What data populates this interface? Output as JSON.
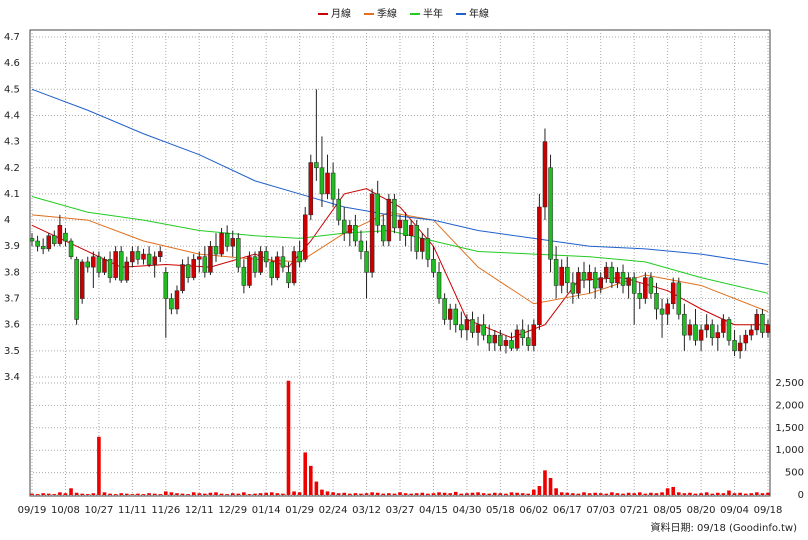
{
  "chart_data": {
    "type": "candlestick",
    "series": [
      {
        "name": "月線",
        "color": "#cc0000",
        "x": [
          0,
          8,
          16,
          24,
          32,
          40,
          46,
          50,
          56,
          60,
          66,
          72,
          78,
          86,
          92,
          98,
          106,
          114,
          120,
          126,
          132
        ],
        "values": [
          3.98,
          3.9,
          3.82,
          3.83,
          3.82,
          3.87,
          3.82,
          3.92,
          4.1,
          4.12,
          4.05,
          3.9,
          3.62,
          3.55,
          3.6,
          3.77,
          3.78,
          3.73,
          3.66,
          3.6,
          3.6
        ]
      },
      {
        "name": "季線",
        "color": "#e07020",
        "x": [
          0,
          10,
          20,
          30,
          40,
          48,
          56,
          64,
          72,
          80,
          90,
          100,
          110,
          120,
          132
        ],
        "values": [
          4.02,
          4.0,
          3.92,
          3.87,
          3.85,
          3.84,
          3.95,
          4.03,
          4.0,
          3.82,
          3.68,
          3.72,
          3.79,
          3.75,
          3.65
        ]
      },
      {
        "name": "半年",
        "color": "#22cc22",
        "x": [
          0,
          10,
          20,
          30,
          40,
          48,
          56,
          64,
          72,
          80,
          90,
          100,
          110,
          120,
          132
        ],
        "values": [
          4.09,
          4.03,
          4.0,
          3.96,
          3.94,
          3.93,
          3.95,
          3.96,
          3.92,
          3.88,
          3.87,
          3.86,
          3.84,
          3.78,
          3.72
        ]
      },
      {
        "name": "年線",
        "color": "#2060cc",
        "x": [
          0,
          10,
          20,
          30,
          40,
          48,
          56,
          64,
          72,
          80,
          90,
          100,
          110,
          120,
          132
        ],
        "values": [
          4.5,
          4.42,
          4.33,
          4.25,
          4.15,
          4.1,
          4.05,
          4.02,
          4.0,
          3.96,
          3.93,
          3.9,
          3.89,
          3.87,
          3.83
        ]
      }
    ],
    "up_color": "#cc0000",
    "down_color": "#22bb22",
    "volume_color": "#ee0000",
    "candles": [
      [
        3.93,
        3.95,
        3.9,
        3.92
      ],
      [
        3.92,
        3.94,
        3.88,
        3.9
      ],
      [
        3.9,
        3.93,
        3.87,
        3.89
      ],
      [
        3.89,
        3.95,
        3.88,
        3.94
      ],
      [
        3.94,
        3.96,
        3.9,
        3.91
      ],
      [
        3.91,
        4.02,
        3.9,
        3.98
      ],
      [
        3.95,
        3.97,
        3.9,
        3.92
      ],
      [
        3.92,
        3.93,
        3.85,
        3.86
      ],
      [
        3.85,
        3.86,
        3.6,
        3.62
      ],
      [
        3.7,
        3.85,
        3.68,
        3.84
      ],
      [
        3.84,
        3.86,
        3.8,
        3.82
      ],
      [
        3.82,
        3.88,
        3.74,
        3.86
      ],
      [
        3.86,
        3.88,
        3.78,
        3.8
      ],
      [
        3.8,
        3.86,
        3.79,
        3.85
      ],
      [
        3.85,
        3.88,
        3.76,
        3.78
      ],
      [
        3.78,
        3.9,
        3.77,
        3.88
      ],
      [
        3.88,
        3.9,
        3.76,
        3.77
      ],
      [
        3.77,
        3.86,
        3.76,
        3.84
      ],
      [
        3.84,
        3.9,
        3.82,
        3.88
      ],
      [
        3.88,
        3.9,
        3.83,
        3.85
      ],
      [
        3.85,
        3.89,
        3.83,
        3.87
      ],
      [
        3.87,
        3.9,
        3.82,
        3.83
      ],
      [
        3.83,
        3.88,
        3.78,
        3.86
      ],
      [
        3.86,
        3.9,
        3.84,
        3.88
      ],
      [
        3.8,
        3.82,
        3.55,
        3.7
      ],
      [
        3.7,
        3.72,
        3.64,
        3.66
      ],
      [
        3.66,
        3.75,
        3.64,
        3.73
      ],
      [
        3.73,
        3.85,
        3.72,
        3.83
      ],
      [
        3.83,
        3.86,
        3.76,
        3.78
      ],
      [
        3.78,
        3.87,
        3.77,
        3.85
      ],
      [
        3.85,
        3.88,
        3.8,
        3.86
      ],
      [
        3.86,
        3.9,
        3.78,
        3.8
      ],
      [
        3.8,
        3.92,
        3.79,
        3.9
      ],
      [
        3.9,
        3.95,
        3.84,
        3.87
      ],
      [
        3.87,
        3.97,
        3.86,
        3.95
      ],
      [
        3.95,
        3.98,
        3.88,
        3.9
      ],
      [
        3.9,
        3.96,
        3.86,
        3.93
      ],
      [
        3.93,
        3.95,
        3.8,
        3.82
      ],
      [
        3.82,
        3.85,
        3.72,
        3.75
      ],
      [
        3.75,
        3.88,
        3.74,
        3.86
      ],
      [
        3.86,
        3.88,
        3.78,
        3.8
      ],
      [
        3.8,
        3.9,
        3.79,
        3.88
      ],
      [
        3.88,
        3.9,
        3.82,
        3.84
      ],
      [
        3.84,
        3.86,
        3.75,
        3.78
      ],
      [
        3.78,
        3.88,
        3.77,
        3.86
      ],
      [
        3.86,
        3.9,
        3.8,
        3.82
      ],
      [
        3.8,
        3.84,
        3.74,
        3.76
      ],
      [
        3.76,
        3.9,
        3.75,
        3.88
      ],
      [
        3.88,
        3.92,
        3.82,
        3.84
      ],
      [
        3.85,
        4.05,
        3.84,
        4.02
      ],
      [
        4.02,
        4.25,
        4.0,
        4.22
      ],
      [
        4.22,
        4.5,
        4.15,
        4.2
      ],
      [
        4.2,
        4.32,
        4.05,
        4.1
      ],
      [
        4.1,
        4.25,
        4.08,
        4.18
      ],
      [
        4.18,
        4.22,
        4.05,
        4.08
      ],
      [
        4.08,
        4.12,
        3.98,
        4.0
      ],
      [
        4.0,
        4.05,
        3.92,
        3.95
      ],
      [
        3.95,
        4.0,
        3.9,
        3.98
      ],
      [
        3.98,
        4.02,
        3.9,
        3.92
      ],
      [
        3.92,
        3.96,
        3.85,
        3.88
      ],
      [
        3.88,
        3.92,
        3.7,
        3.8
      ],
      [
        3.8,
        4.12,
        3.78,
        4.1
      ],
      [
        4.1,
        4.15,
        3.95,
        3.98
      ],
      [
        3.98,
        4.02,
        3.9,
        3.92
      ],
      [
        3.92,
        4.1,
        3.9,
        4.08
      ],
      [
        4.08,
        4.1,
        3.95,
        3.97
      ],
      [
        3.97,
        4.02,
        3.92,
        4.0
      ],
      [
        4.0,
        4.03,
        3.9,
        3.94
      ],
      [
        3.94,
        4.0,
        3.88,
        3.98
      ],
      [
        3.98,
        4.0,
        3.85,
        3.88
      ],
      [
        3.88,
        3.95,
        3.85,
        3.93
      ],
      [
        3.93,
        3.97,
        3.82,
        3.85
      ],
      [
        3.85,
        3.9,
        3.78,
        3.8
      ],
      [
        3.8,
        3.84,
        3.68,
        3.7
      ],
      [
        3.7,
        3.72,
        3.6,
        3.62
      ],
      [
        3.62,
        3.68,
        3.58,
        3.66
      ],
      [
        3.66,
        3.68,
        3.57,
        3.6
      ],
      [
        3.6,
        3.65,
        3.55,
        3.58
      ],
      [
        3.58,
        3.64,
        3.54,
        3.62
      ],
      [
        3.62,
        3.65,
        3.55,
        3.57
      ],
      [
        3.57,
        3.63,
        3.52,
        3.6
      ],
      [
        3.6,
        3.64,
        3.54,
        3.56
      ],
      [
        3.56,
        3.6,
        3.5,
        3.53
      ],
      [
        3.53,
        3.58,
        3.5,
        3.56
      ],
      [
        3.56,
        3.58,
        3.5,
        3.52
      ],
      [
        3.52,
        3.56,
        3.49,
        3.54
      ],
      [
        3.54,
        3.57,
        3.5,
        3.51
      ],
      [
        3.51,
        3.6,
        3.5,
        3.58
      ],
      [
        3.58,
        3.62,
        3.52,
        3.55
      ],
      [
        3.55,
        3.6,
        3.5,
        3.52
      ],
      [
        3.52,
        3.62,
        3.5,
        3.6
      ],
      [
        3.6,
        4.1,
        3.58,
        4.05
      ],
      [
        4.05,
        4.35,
        4.0,
        4.3
      ],
      [
        4.2,
        4.25,
        3.8,
        3.85
      ],
      [
        3.85,
        3.9,
        3.7,
        3.75
      ],
      [
        3.75,
        3.85,
        3.72,
        3.82
      ],
      [
        3.82,
        3.86,
        3.72,
        3.76
      ],
      [
        3.76,
        3.8,
        3.68,
        3.72
      ],
      [
        3.72,
        3.82,
        3.7,
        3.8
      ],
      [
        3.8,
        3.84,
        3.74,
        3.77
      ],
      [
        3.77,
        3.83,
        3.72,
        3.8
      ],
      [
        3.8,
        3.82,
        3.7,
        3.74
      ],
      [
        3.74,
        3.8,
        3.72,
        3.78
      ],
      [
        3.78,
        3.84,
        3.76,
        3.82
      ],
      [
        3.82,
        3.84,
        3.74,
        3.76
      ],
      [
        3.76,
        3.82,
        3.74,
        3.8
      ],
      [
        3.8,
        3.83,
        3.72,
        3.75
      ],
      [
        3.75,
        3.8,
        3.7,
        3.78
      ],
      [
        3.78,
        3.8,
        3.6,
        3.72
      ],
      [
        3.72,
        3.76,
        3.66,
        3.7
      ],
      [
        3.7,
        3.8,
        3.68,
        3.78
      ],
      [
        3.78,
        3.8,
        3.7,
        3.72
      ],
      [
        3.72,
        3.76,
        3.62,
        3.66
      ],
      [
        3.66,
        3.7,
        3.55,
        3.64
      ],
      [
        3.64,
        3.7,
        3.6,
        3.68
      ],
      [
        3.68,
        3.78,
        3.66,
        3.76
      ],
      [
        3.76,
        3.78,
        3.62,
        3.64
      ],
      [
        3.64,
        3.68,
        3.5,
        3.56
      ],
      [
        3.56,
        3.62,
        3.54,
        3.6
      ],
      [
        3.6,
        3.66,
        3.52,
        3.54
      ],
      [
        3.54,
        3.6,
        3.5,
        3.58
      ],
      [
        3.58,
        3.64,
        3.55,
        3.6
      ],
      [
        3.6,
        3.62,
        3.52,
        3.55
      ],
      [
        3.55,
        3.6,
        3.5,
        3.57
      ],
      [
        3.57,
        3.64,
        3.55,
        3.62
      ],
      [
        3.62,
        3.63,
        3.52,
        3.54
      ],
      [
        3.54,
        3.58,
        3.48,
        3.5
      ],
      [
        3.5,
        3.56,
        3.47,
        3.53
      ],
      [
        3.53,
        3.58,
        3.5,
        3.56
      ],
      [
        3.56,
        3.6,
        3.54,
        3.58
      ],
      [
        3.58,
        3.66,
        3.56,
        3.64
      ],
      [
        3.64,
        3.66,
        3.55,
        3.57
      ],
      [
        3.57,
        3.62,
        3.55,
        3.6
      ]
    ],
    "volume": [
      30,
      20,
      40,
      30,
      20,
      60,
      40,
      150,
      50,
      30,
      20,
      40,
      1300,
      60,
      30,
      20,
      40,
      30,
      20,
      30,
      20,
      40,
      30,
      20,
      80,
      60,
      40,
      30,
      20,
      60,
      40,
      30,
      50,
      60,
      30,
      20,
      40,
      30,
      60,
      20,
      30,
      40,
      50,
      60,
      40,
      30,
      2550,
      80,
      60,
      950,
      650,
      300,
      120,
      80,
      60,
      40,
      50,
      30,
      40,
      30,
      40,
      60,
      50,
      30,
      40,
      30,
      60,
      40,
      30,
      40,
      50,
      30,
      40,
      60,
      50,
      40,
      70,
      30,
      40,
      50,
      60,
      40,
      30,
      50,
      40,
      30,
      60,
      50,
      40,
      30,
      120,
      200,
      550,
      380,
      150,
      60,
      50,
      40,
      30,
      60,
      40,
      50,
      40,
      30,
      60,
      40,
      30,
      50,
      40,
      60,
      30,
      50,
      40,
      60,
      150,
      180,
      60,
      40,
      50,
      30,
      40,
      60,
      30,
      50,
      40,
      100,
      40,
      50,
      30,
      40,
      60,
      40,
      50
    ],
    "xlim": [
      0,
      132
    ],
    "xticks": [
      {
        "value": 0,
        "label": "09/19"
      },
      {
        "value": 6,
        "label": "10/08"
      },
      {
        "value": 12,
        "label": "10/27"
      },
      {
        "value": 18,
        "label": "11/11"
      },
      {
        "value": 24,
        "label": "11/26"
      },
      {
        "value": 30,
        "label": "12/11"
      },
      {
        "value": 36,
        "label": "12/29"
      },
      {
        "value": 42,
        "label": "01/14"
      },
      {
        "value": 48,
        "label": "01/29"
      },
      {
        "value": 54,
        "label": "02/24"
      },
      {
        "value": 60,
        "label": "03/12"
      },
      {
        "value": 66,
        "label": "03/27"
      },
      {
        "value": 72,
        "label": "04/15"
      },
      {
        "value": 78,
        "label": "04/30"
      },
      {
        "value": 84,
        "label": "05/18"
      },
      {
        "value": 90,
        "label": "06/02"
      },
      {
        "value": 96,
        "label": "06/17"
      },
      {
        "value": 102,
        "label": "07/03"
      },
      {
        "value": 108,
        "label": "07/21"
      },
      {
        "value": 114,
        "label": "08/05"
      },
      {
        "value": 120,
        "label": "08/20"
      },
      {
        "value": 126,
        "label": "09/04"
      },
      {
        "value": 132,
        "label": "09/18"
      }
    ],
    "ylim": [
      3.4,
      4.7
    ],
    "yticks": [
      3.4,
      3.5,
      3.6,
      3.7,
      3.8,
      3.9,
      4,
      4.1,
      4.2,
      4.3,
      4.4,
      4.5,
      4.6,
      4.7
    ],
    "y2lim": [
      0,
      2500
    ],
    "y2ticks": [
      0,
      500,
      {
        "value": 1000,
        "label": "1,000"
      },
      {
        "value": 1500,
        "label": "1,500"
      },
      {
        "value": 2000,
        "label": "2,000"
      },
      {
        "value": 2500,
        "label": "2,500"
      }
    ],
    "grid": true,
    "source_note": "資料日期: 09/18 (Goodinfo.tw)"
  }
}
